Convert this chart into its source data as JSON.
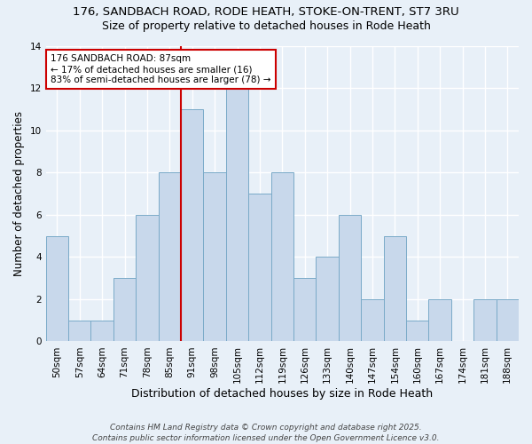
{
  "title": "176, SANDBACH ROAD, RODE HEATH, STOKE-ON-TRENT, ST7 3RU",
  "subtitle": "Size of property relative to detached houses in Rode Heath",
  "xlabel": "Distribution of detached houses by size in Rode Heath",
  "ylabel": "Number of detached properties",
  "categories": [
    "50sqm",
    "57sqm",
    "64sqm",
    "71sqm",
    "78sqm",
    "85sqm",
    "91sqm",
    "98sqm",
    "105sqm",
    "112sqm",
    "119sqm",
    "126sqm",
    "133sqm",
    "140sqm",
    "147sqm",
    "154sqm",
    "160sqm",
    "167sqm",
    "174sqm",
    "181sqm",
    "188sqm"
  ],
  "values": [
    5,
    1,
    1,
    3,
    6,
    8,
    11,
    8,
    12,
    7,
    8,
    3,
    4,
    6,
    2,
    5,
    1,
    2,
    0,
    2,
    2
  ],
  "bar_color": "#c8d8eb",
  "bar_edge_color": "#7aaac8",
  "vline_x_index": 5.5,
  "annotation_text": "176 SANDBACH ROAD: 87sqm\n← 17% of detached houses are smaller (16)\n83% of semi-detached houses are larger (78) →",
  "annotation_box_color": "#ffffff",
  "annotation_box_edge": "#cc0000",
  "vline_color": "#cc0000",
  "ylim": [
    0,
    14
  ],
  "yticks": [
    0,
    2,
    4,
    6,
    8,
    10,
    12,
    14
  ],
  "background_color": "#e8f0f8",
  "grid_color": "#ffffff",
  "footer": "Contains HM Land Registry data © Crown copyright and database right 2025.\nContains public sector information licensed under the Open Government Licence v3.0.",
  "title_fontsize": 9.5,
  "subtitle_fontsize": 9,
  "xlabel_fontsize": 9,
  "ylabel_fontsize": 8.5,
  "tick_fontsize": 7.5,
  "annotation_fontsize": 7.5,
  "footer_fontsize": 6.5
}
